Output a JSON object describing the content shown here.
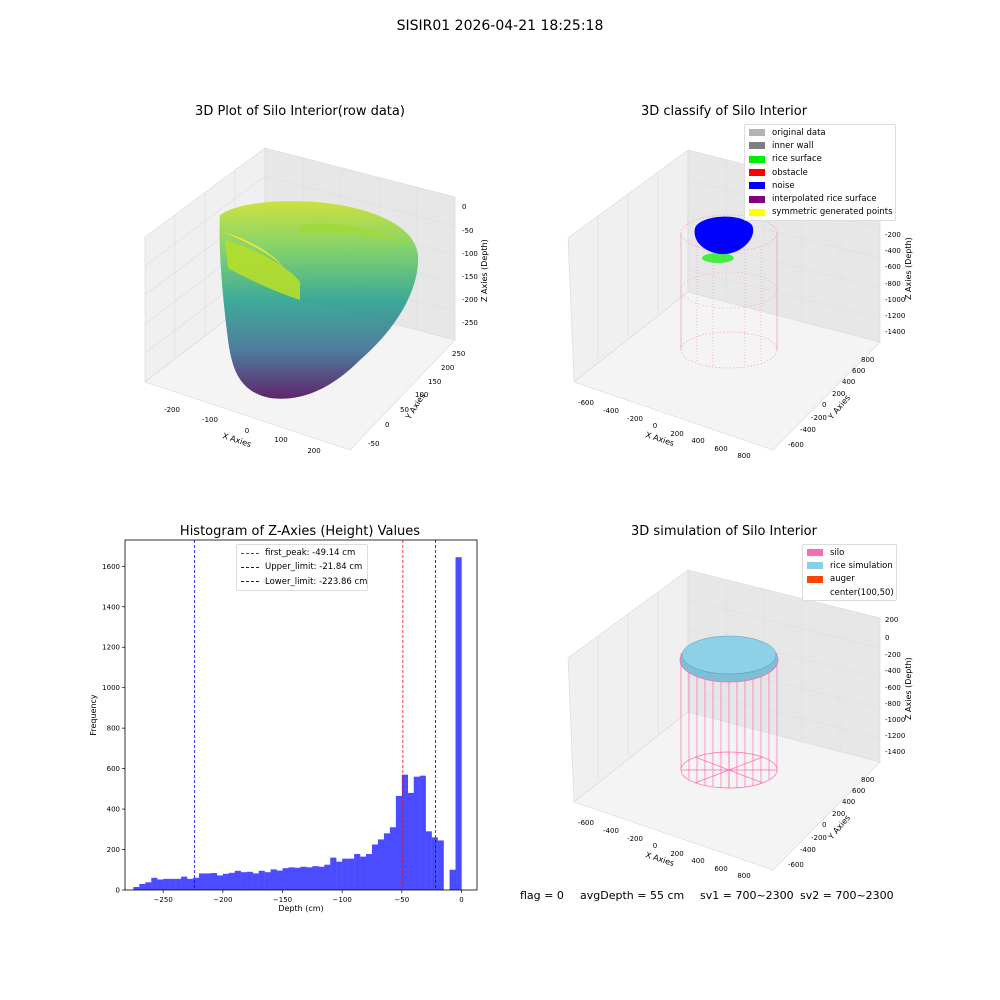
{
  "suptitle": "SISIR01 2026-04-21 18:25:18",
  "status": {
    "flag": "flag = 0",
    "avg_depth": "avgDepth = 55 cm",
    "sv1": "sv1 = 700~2300",
    "sv2": "sv2 = 700~2300"
  },
  "plots": {
    "raw": {
      "title": "3D Plot of Silo Interior(row data)",
      "xlabel": "X Axies",
      "ylabel": "Y Axies",
      "zlabel": "Z Axies (Depth)",
      "xticks": [
        "-200",
        "-100",
        "0",
        "100",
        "200"
      ],
      "yticks": [
        "-50",
        "0",
        "50",
        "100",
        "150",
        "200",
        "250"
      ],
      "zticks": [
        "0",
        "-50",
        "-100",
        "-150",
        "-200",
        "-250"
      ]
    },
    "classify": {
      "title": "3D classify of Silo Interior",
      "xlabel": "X Axies",
      "ylabel": "Y Axies",
      "zlabel": "Z Axies (Depth)",
      "xticks": [
        "-600",
        "-400",
        "-200",
        "0",
        "200",
        "400",
        "600",
        "800"
      ],
      "yticks": [
        "-600",
        "-400",
        "-200",
        "0",
        "200",
        "400",
        "600",
        "800"
      ],
      "zticks": [
        "-200",
        "-400",
        "-600",
        "-800",
        "-1000",
        "-1200",
        "-1400"
      ],
      "legend": [
        {
          "label": "original data",
          "color": "#b3b3b3"
        },
        {
          "label": "inner wall",
          "color": "#808080"
        },
        {
          "label": "rice surface",
          "color": "#00ee00"
        },
        {
          "label": "obstacle",
          "color": "#ff0000"
        },
        {
          "label": "noise",
          "color": "#0000ff"
        },
        {
          "label": "interpolated rice surface",
          "color": "#800080"
        },
        {
          "label": "symmetric generated points",
          "color": "#ffff00"
        }
      ]
    },
    "simulation": {
      "title": "3D simulation of Silo Interior",
      "xlabel": "X Axies",
      "ylabel": "Y Axies",
      "zlabel": "Z Axies (Depth)",
      "xticks": [
        "-600",
        "-400",
        "-200",
        "0",
        "200",
        "400",
        "600",
        "800"
      ],
      "yticks": [
        "-600",
        "-400",
        "-200",
        "0",
        "200",
        "400",
        "600",
        "800"
      ],
      "zticks": [
        "200",
        "0",
        "-200",
        "-400",
        "-600",
        "-800",
        "-1000",
        "-1200",
        "-1400"
      ],
      "legend": [
        {
          "label": "silo",
          "color": "#ff69b4"
        },
        {
          "label": "rice simulation",
          "color": "#87ceeb"
        },
        {
          "label": "auger",
          "color": "#ff4500"
        },
        {
          "label": "center(100,50)",
          "color": "#ffffff"
        }
      ]
    }
  },
  "chart_data": {
    "type": "bar",
    "title": "Histogram of Z-Axies (Height) Values",
    "xlabel": "Depth (cm)",
    "ylabel": "Frequency",
    "xlim": [
      -282,
      13
    ],
    "ylim": [
      0,
      1730
    ],
    "xticks": [
      -250,
      -200,
      -150,
      -100,
      -50,
      0
    ],
    "yticks": [
      0,
      200,
      400,
      600,
      800,
      1000,
      1200,
      1400,
      1600
    ],
    "bar_color": "#4b4bff",
    "bin_width": 5,
    "bin_starts": [
      -275,
      -270,
      -265,
      -260,
      -255,
      -250,
      -245,
      -240,
      -235,
      -230,
      -225,
      -220,
      -215,
      -210,
      -205,
      -200,
      -195,
      -190,
      -185,
      -180,
      -175,
      -170,
      -165,
      -160,
      -155,
      -150,
      -145,
      -140,
      -135,
      -130,
      -125,
      -120,
      -115,
      -110,
      -105,
      -100,
      -95,
      -90,
      -85,
      -80,
      -75,
      -70,
      -65,
      -60,
      -55,
      -50,
      -45,
      -40,
      -35,
      -30,
      -25,
      -20,
      -15,
      -10,
      -5
    ],
    "values": [
      15,
      30,
      38,
      60,
      52,
      55,
      55,
      55,
      66,
      55,
      60,
      82,
      82,
      84,
      72,
      80,
      85,
      95,
      88,
      90,
      82,
      95,
      88,
      102,
      96,
      108,
      112,
      110,
      115,
      112,
      118,
      115,
      125,
      160,
      140,
      155,
      155,
      178,
      165,
      178,
      225,
      250,
      280,
      310,
      465,
      570,
      480,
      560,
      565,
      290,
      260,
      245,
      0,
      100,
      1645
    ],
    "vlines": [
      {
        "label": "first_peak: -49.14 cm",
        "x": -49.14,
        "color": "#ff0000"
      },
      {
        "label": "Upper_limit: -21.84 cm",
        "x": -21.84,
        "color": "#0000ff"
      },
      {
        "label": "Lower_limit: -223.86 cm",
        "x": -223.86,
        "color": "#0000ff"
      }
    ],
    "legend_position": "top-center"
  }
}
